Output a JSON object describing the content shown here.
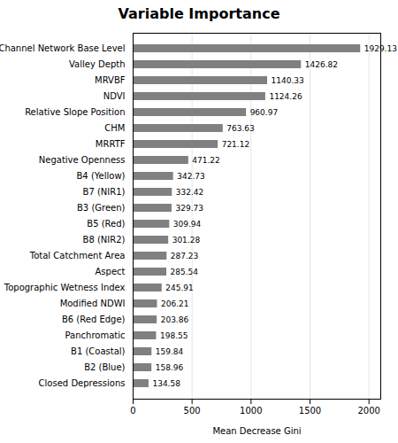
{
  "chart_data": {
    "type": "bar",
    "orientation": "horizontal",
    "title": "Variable Importance",
    "xlabel": "Mean Decrease Gini",
    "categories": [
      "Closed Depressions",
      "B2 (Blue)",
      "B1 (Coastal)",
      "Panchromatic",
      "B6 (Red Edge)",
      "Modified NDWI",
      "Topographic Wetness Index",
      "Aspect",
      "Total Catchment Area",
      "B8 (NIR2)",
      "B5 (Red)",
      "B3 (Green)",
      "B7 (NIR1)",
      "B4 (Yellow)",
      "Negative Openness",
      "MRRTF",
      "CHM",
      "Relative Slope Position",
      "NDVI",
      "MRVBF",
      "Valley Depth",
      "Channel Network Base Level"
    ],
    "values": [
      134.58,
      158.96,
      159.84,
      198.55,
      203.86,
      206.21,
      245.91,
      285.54,
      287.23,
      301.28,
      309.94,
      329.73,
      332.42,
      342.73,
      471.22,
      721.12,
      763.63,
      960.97,
      1124.26,
      1140.33,
      1426.82,
      1929.13
    ],
    "color": "#808080",
    "xlim": [
      0,
      2100
    ],
    "xticks": [
      0,
      500,
      1000,
      1500,
      2000
    ],
    "grid": true,
    "data_labels": true
  }
}
